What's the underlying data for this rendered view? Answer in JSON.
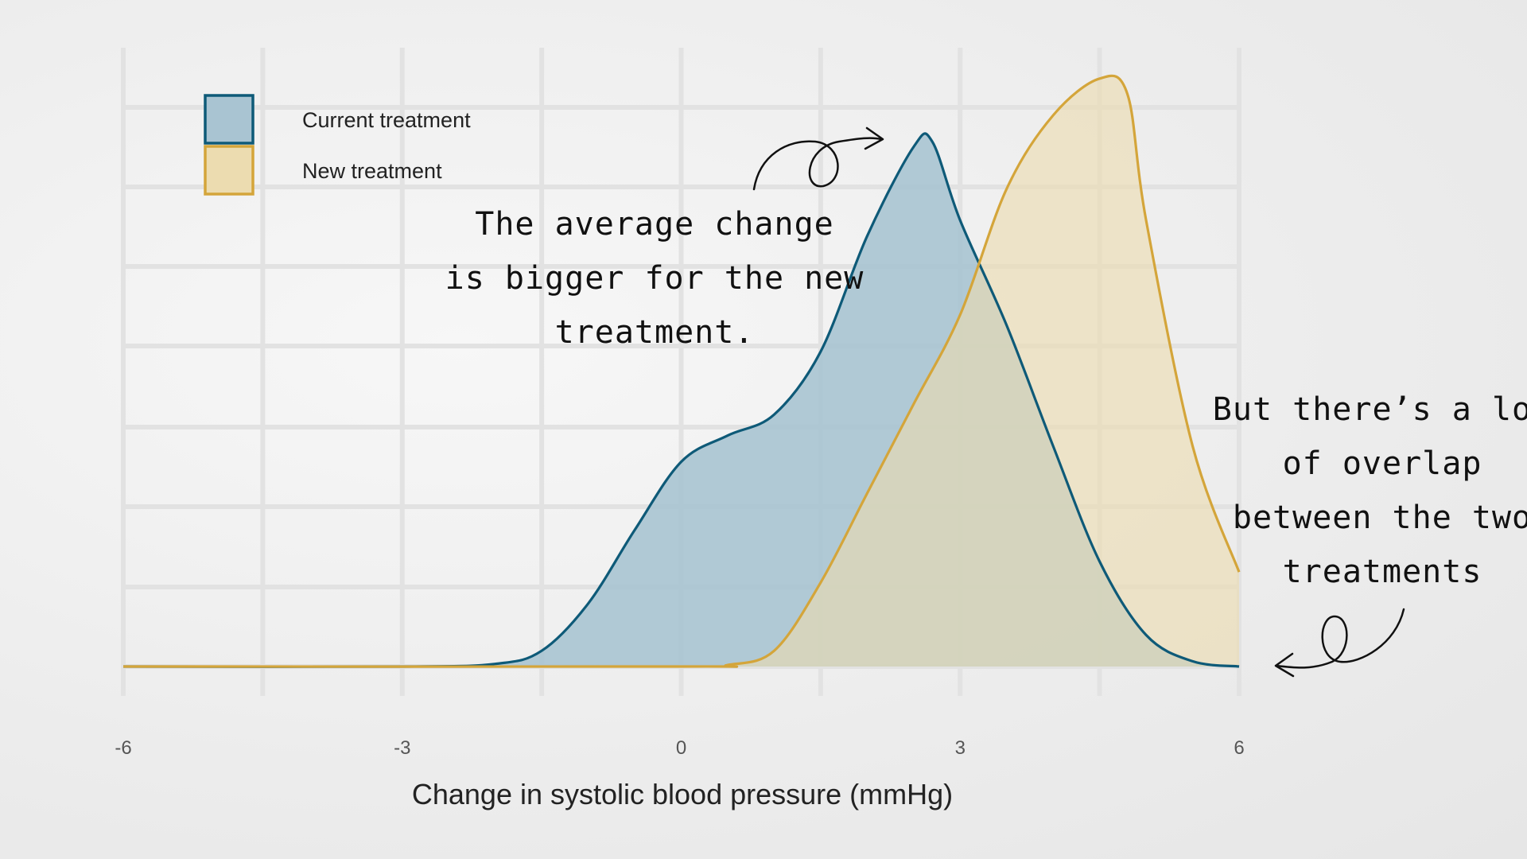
{
  "chart_data": {
    "type": "area",
    "chart_subtype": "density",
    "xlabel": "Change in systolic blood pressure (mmHg)",
    "ylabel": "",
    "xlim": [
      -6,
      6
    ],
    "x_ticks": [
      "-6",
      "-3",
      "0",
      "3",
      "6"
    ],
    "grid": true,
    "legend_position": "top-left",
    "series": [
      {
        "name": "Current treatment",
        "color": "#0e5a78",
        "fill": "#a9c4d2",
        "x": [
          -6,
          -3,
          -2,
          -1.5,
          -1,
          -0.5,
          0,
          0.5,
          1,
          1.5,
          2,
          2.5,
          2.7,
          3,
          3.5,
          4,
          4.5,
          5,
          5.5,
          6
        ],
        "y": [
          0,
          0,
          0.005,
          0.03,
          0.12,
          0.26,
          0.39,
          0.44,
          0.48,
          0.6,
          0.82,
          0.99,
          1.0,
          0.85,
          0.65,
          0.42,
          0.2,
          0.06,
          0.01,
          0
        ]
      },
      {
        "name": "New treatment",
        "color": "#d4a53a",
        "fill": "#ecdcb0",
        "x": [
          -6,
          0,
          0.5,
          1,
          1.5,
          2,
          2.5,
          3,
          3.5,
          4,
          4.5,
          4.8,
          5,
          5.5,
          6
        ],
        "y": [
          0,
          0,
          0.003,
          0.03,
          0.16,
          0.33,
          0.5,
          0.67,
          0.91,
          1.05,
          1.12,
          1.09,
          0.85,
          0.42,
          0.18
        ]
      }
    ],
    "annotations": [
      {
        "lines": [
          "The average change",
          "is bigger for the new",
          "treatment."
        ]
      },
      {
        "lines": [
          "But there’s a lot",
          "of overlap",
          "between the two",
          "treatments"
        ]
      }
    ]
  }
}
